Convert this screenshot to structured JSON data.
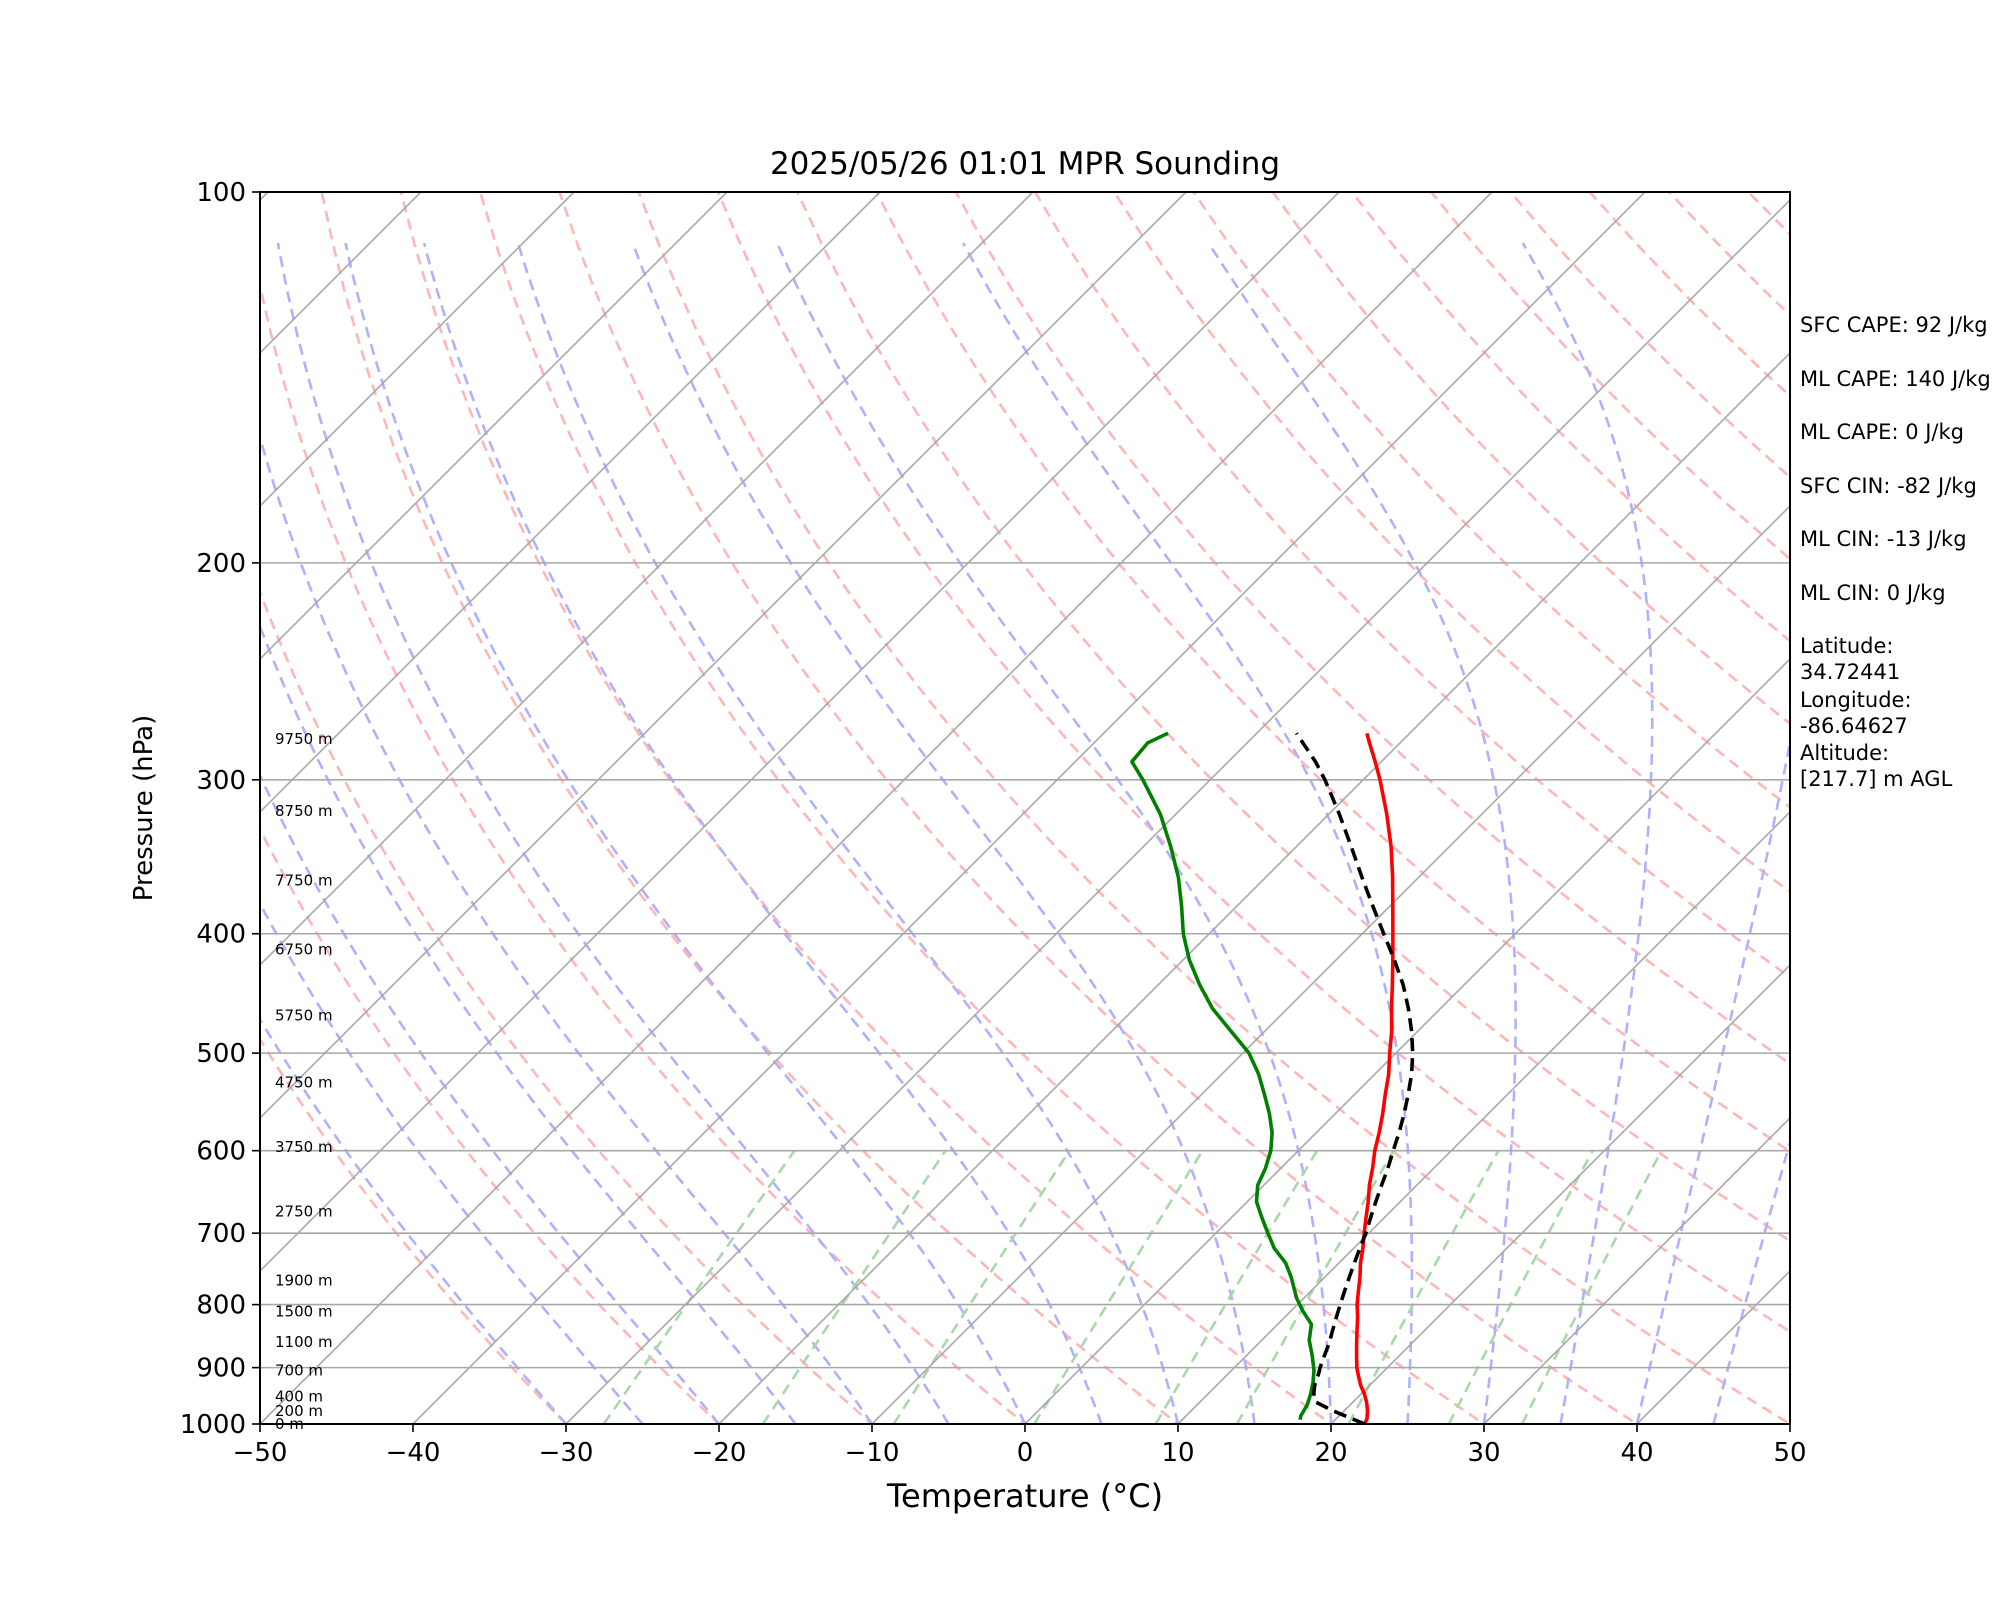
{
  "chart_data": {
    "type": "skew-t",
    "title": "2025/05/26 01:01 MPR Sounding",
    "xlabel": "Temperature (°C)",
    "ylabel": "Pressure (hPa)",
    "xlim": [
      -50,
      50
    ],
    "ylim": [
      1000,
      100
    ],
    "y_scale": "log",
    "x_ticks": [
      "−50",
      "−40",
      "−30",
      "−20",
      "−10",
      "0",
      "10",
      "20",
      "30",
      "40",
      "50"
    ],
    "y_ticks": [
      {
        "p": 100,
        "label": "100"
      },
      {
        "p": 200,
        "label": "200"
      },
      {
        "p": 300,
        "label": "300"
      },
      {
        "p": 400,
        "label": "400"
      },
      {
        "p": 500,
        "label": "500"
      },
      {
        "p": 600,
        "label": "600"
      },
      {
        "p": 700,
        "label": "700"
      },
      {
        "p": 800,
        "label": "800"
      },
      {
        "p": 900,
        "label": "900"
      },
      {
        "p": 1000,
        "label": "1000"
      }
    ],
    "height_labels": [
      {
        "p": 278,
        "label": "9750 m"
      },
      {
        "p": 318,
        "label": "8750 m"
      },
      {
        "p": 362,
        "label": "7750 m"
      },
      {
        "p": 412,
        "label": "6750 m"
      },
      {
        "p": 466,
        "label": "5750 m"
      },
      {
        "p": 528,
        "label": "4750 m"
      },
      {
        "p": 596,
        "label": "3750 m"
      },
      {
        "p": 672,
        "label": "2750 m"
      },
      {
        "p": 765,
        "label": "1900 m"
      },
      {
        "p": 810,
        "label": "1500 m"
      },
      {
        "p": 858,
        "label": "1100 m"
      },
      {
        "p": 905,
        "label": "700 m"
      },
      {
        "p": 950,
        "label": "400 m"
      },
      {
        "p": 976,
        "label": "200 m"
      },
      {
        "p": 1000,
        "label": "0 m"
      }
    ],
    "series": [
      {
        "role": "temperature",
        "color": "#ff0000",
        "points": [
          [
            1000,
            22.2
          ],
          [
            990,
            22.0
          ],
          [
            975,
            21.5
          ],
          [
            960,
            20.9
          ],
          [
            945,
            20.2
          ],
          [
            930,
            19.4
          ],
          [
            915,
            18.7
          ],
          [
            900,
            18.0
          ],
          [
            880,
            17.2
          ],
          [
            860,
            16.4
          ],
          [
            840,
            15.6
          ],
          [
            820,
            14.8
          ],
          [
            800,
            13.9
          ],
          [
            780,
            13.1
          ],
          [
            760,
            12.3
          ],
          [
            740,
            11.4
          ],
          [
            720,
            10.6
          ],
          [
            700,
            9.7
          ],
          [
            680,
            8.8
          ],
          [
            660,
            7.9
          ],
          [
            640,
            6.9
          ],
          [
            620,
            6.0
          ],
          [
            600,
            5.0
          ],
          [
            580,
            4.1
          ],
          [
            560,
            3.1
          ],
          [
            540,
            2.0
          ],
          [
            520,
            0.9
          ],
          [
            500,
            -0.4
          ],
          [
            480,
            -1.7
          ],
          [
            460,
            -3.2
          ],
          [
            440,
            -4.7
          ],
          [
            420,
            -6.3
          ],
          [
            400,
            -8.0
          ],
          [
            380,
            -9.8
          ],
          [
            360,
            -11.7
          ],
          [
            340,
            -13.8
          ],
          [
            320,
            -16.2
          ],
          [
            300,
            -18.9
          ],
          [
            290,
            -20.4
          ],
          [
            280,
            -22.0
          ],
          [
            275,
            -22.8
          ]
        ]
      },
      {
        "role": "dewpoint",
        "color": "#008000",
        "points": [
          [
            992,
            17.7
          ],
          [
            985,
            17.5
          ],
          [
            965,
            17.2
          ],
          [
            945,
            16.7
          ],
          [
            925,
            16.1
          ],
          [
            905,
            15.4
          ],
          [
            880,
            14.3
          ],
          [
            855,
            13.1
          ],
          [
            830,
            12.2
          ],
          [
            810,
            10.8
          ],
          [
            790,
            9.5
          ],
          [
            760,
            7.8
          ],
          [
            740,
            6.5
          ],
          [
            720,
            4.8
          ],
          [
            700,
            3.4
          ],
          [
            680,
            2.0
          ],
          [
            660,
            0.6
          ],
          [
            640,
            -0.4
          ],
          [
            620,
            -1.0
          ],
          [
            600,
            -1.8
          ],
          [
            580,
            -2.9
          ],
          [
            560,
            -4.3
          ],
          [
            540,
            -5.9
          ],
          [
            520,
            -7.6
          ],
          [
            500,
            -9.6
          ],
          [
            480,
            -12.2
          ],
          [
            460,
            -14.9
          ],
          [
            440,
            -17.3
          ],
          [
            420,
            -19.6
          ],
          [
            400,
            -21.7
          ],
          [
            380,
            -23.6
          ],
          [
            360,
            -25.7
          ],
          [
            340,
            -28.2
          ],
          [
            320,
            -31.0
          ],
          [
            300,
            -34.4
          ],
          [
            290,
            -36.3
          ],
          [
            280,
            -36.5
          ],
          [
            275,
            -35.8
          ]
        ]
      },
      {
        "role": "parcel",
        "color": "#000000",
        "dashed": true,
        "points": [
          [
            1000,
            22.2
          ],
          [
            990,
            21.0
          ],
          [
            975,
            19.2
          ],
          [
            960,
            17.6
          ],
          [
            945,
            16.9
          ],
          [
            930,
            16.4
          ],
          [
            910,
            15.9
          ],
          [
            900,
            15.6
          ],
          [
            880,
            15.1
          ],
          [
            860,
            14.6
          ],
          [
            840,
            14.0
          ],
          [
            820,
            13.4
          ],
          [
            800,
            12.8
          ],
          [
            780,
            12.2
          ],
          [
            760,
            11.6
          ],
          [
            740,
            11.0
          ],
          [
            720,
            10.4
          ],
          [
            700,
            9.8
          ],
          [
            680,
            9.1
          ],
          [
            660,
            8.4
          ],
          [
            640,
            7.7
          ],
          [
            620,
            7.0
          ],
          [
            600,
            6.2
          ],
          [
            580,
            5.4
          ],
          [
            560,
            4.5
          ],
          [
            540,
            3.5
          ],
          [
            520,
            2.4
          ],
          [
            500,
            1.1
          ],
          [
            480,
            -0.4
          ],
          [
            460,
            -2.1
          ],
          [
            440,
            -4.0
          ],
          [
            420,
            -6.2
          ],
          [
            400,
            -8.6
          ],
          [
            380,
            -11.1
          ],
          [
            360,
            -13.7
          ],
          [
            340,
            -16.4
          ],
          [
            320,
            -19.3
          ],
          [
            300,
            -22.5
          ],
          [
            290,
            -24.3
          ],
          [
            275,
            -27.4
          ]
        ]
      }
    ],
    "annotations": [
      "SFC CAPE: 92 J/kg",
      "ML CAPE: 140 J/kg",
      "ML CAPE: 0 J/kg",
      "SFC CIN: -82 J/kg",
      "ML CIN: -13 J/kg",
      "ML CIN: 0 J/kg",
      "Latitude:\n34.72441",
      "Longitude:\n-86.64627",
      "Altitude:\n[217.7] m AGL"
    ],
    "colors": {
      "isotherm": "#a8a8a8",
      "isobar": "#a8a8a8",
      "dry_adiabat": "#ffb6b6",
      "moist_adiabat": "#b0b0ff",
      "mixing_ratio": "#a8d8a8"
    },
    "grid": true
  }
}
